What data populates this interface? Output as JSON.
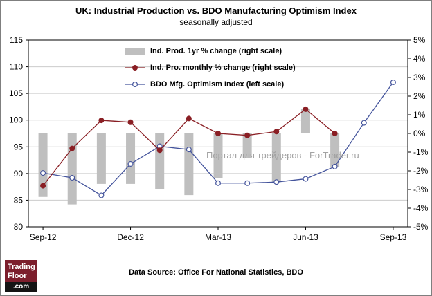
{
  "footer": {
    "source": "Data Source: Office For National Statistics, BDO"
  },
  "watermark": "Портал для трейдеров - ForTrader.ru",
  "logo": {
    "line1": "Trading",
    "line2": "Floor",
    "line3": ".com"
  },
  "chart_data": {
    "type": "line+bar",
    "title": "UK: Industrial Production vs. BDO Manufacturing Optimism Index",
    "subtitle": "seasonally adjusted",
    "categories": [
      "Sep-12",
      "Oct-12",
      "Nov-12",
      "Dec-12",
      "Jan-13",
      "Feb-13",
      "Mar-13",
      "Apr-13",
      "May-13",
      "Jun-13",
      "Jul-13",
      "Aug-13",
      "Sep-13"
    ],
    "x_tick_labels": [
      "Sep-12",
      "Dec-12",
      "Mar-13",
      "Jun-13",
      "Sep-13"
    ],
    "left_axis": {
      "min": 80,
      "max": 115,
      "tick_step": 5
    },
    "right_axis": {
      "min": -5,
      "max": 5,
      "tick_step": 1,
      "suffix": "%"
    },
    "grid": true,
    "legend_position": "top-center-inside",
    "series": [
      {
        "name": "Ind. Prod. 1yr  % change (right scale)",
        "type": "bar",
        "axis": "right",
        "color": "#bfbfbf",
        "values": [
          -3.4,
          -3.8,
          -2.7,
          -2.7,
          -3.0,
          -3.3,
          -2.4,
          -1.3,
          -2.6,
          1.3,
          -1.8,
          null,
          null
        ]
      },
      {
        "name": "Ind. Pro. monthly % change (right scale)",
        "type": "line",
        "axis": "right",
        "color": "#8a1f24",
        "marker": "filled-circle",
        "values": [
          -2.8,
          -0.8,
          0.7,
          0.6,
          -0.9,
          0.8,
          0.0,
          -0.1,
          0.1,
          1.3,
          0.0,
          null,
          null
        ]
      },
      {
        "name": "BDO Mfg. Optimism Index (left scale)",
        "type": "line",
        "axis": "left",
        "color": "#44549c",
        "marker": "open-circle",
        "values": [
          90.1,
          89.2,
          85.9,
          91.8,
          95.1,
          94.5,
          88.2,
          88.2,
          88.4,
          89.0,
          91.3,
          99.5,
          107.1
        ]
      }
    ]
  }
}
